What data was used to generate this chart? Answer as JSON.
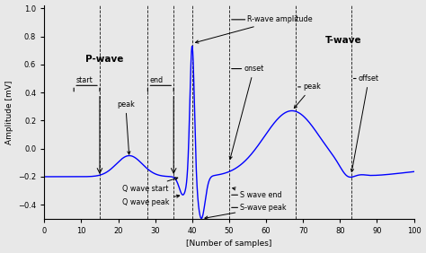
{
  "xlabel": "[Number of samples]",
  "ylabel": "Amplitude [mV]",
  "xlim": [
    0,
    100
  ],
  "ylim": [
    -0.5,
    1.02
  ],
  "yticks": [
    1,
    0.8,
    0.6,
    0.4,
    0.2,
    0,
    -0.2,
    -0.4
  ],
  "xticks": [
    0,
    10,
    20,
    30,
    40,
    50,
    60,
    70,
    80,
    90,
    100
  ],
  "line_color": "blue",
  "bg_color": "#e8e8e8",
  "dashed_lines_x": [
    15,
    28,
    35,
    40,
    50,
    68,
    83
  ],
  "p_wave_label": "P-wave",
  "t_wave_label": "T-wave"
}
